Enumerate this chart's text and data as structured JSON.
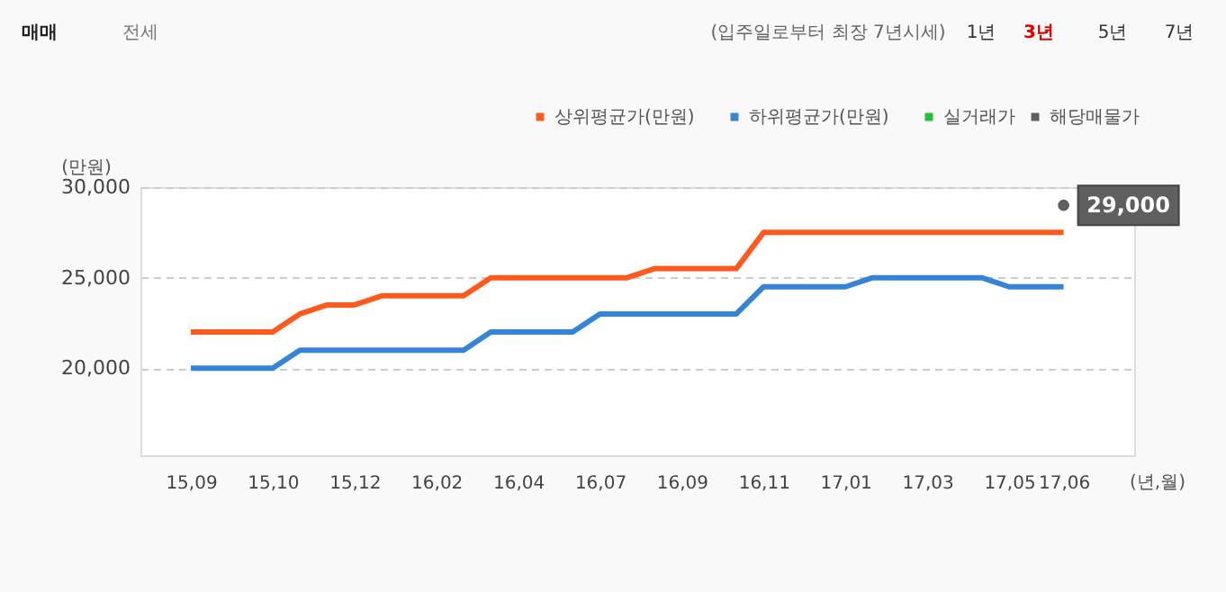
{
  "chart_data": {
    "type": "line",
    "categories": [
      "15,09",
      null,
      null,
      "15,10",
      null,
      null,
      "15,12",
      null,
      null,
      "16,02",
      null,
      null,
      "16,04",
      null,
      null,
      "16,07",
      null,
      null,
      "16,09",
      null,
      null,
      "16,11",
      null,
      null,
      "17,01",
      null,
      null,
      "17,03",
      null,
      null,
      "17,05",
      null,
      "17,06"
    ],
    "series": [
      {
        "name": "상위평균가(만원)",
        "color": "#ff5a1e",
        "values": [
          22000,
          22000,
          22000,
          22000,
          23000,
          23500,
          23500,
          24000,
          24000,
          24000,
          24000,
          25000,
          25000,
          25000,
          25000,
          25000,
          25000,
          25500,
          25500,
          25500,
          25500,
          27500,
          27500,
          27500,
          27500,
          27500,
          27500,
          27500,
          27500,
          27500,
          27500,
          27500,
          27500
        ]
      },
      {
        "name": "하위평균가(만원)",
        "color": "#3584d6",
        "values": [
          20000,
          20000,
          20000,
          20000,
          21000,
          21000,
          21000,
          21000,
          21000,
          21000,
          21000,
          22000,
          22000,
          22000,
          22000,
          23000,
          23000,
          23000,
          23000,
          23000,
          23000,
          24500,
          24500,
          24500,
          24500,
          25000,
          25000,
          25000,
          25000,
          25000,
          24500,
          24500,
          24500
        ]
      },
      {
        "name": "실거래가",
        "color": "#1dc23a",
        "type": "scatter",
        "values": [
          null,
          null,
          null,
          null,
          null,
          null,
          null,
          null,
          null,
          null,
          null,
          null,
          null,
          null,
          null,
          null,
          null,
          null,
          null,
          null,
          null,
          null,
          null,
          null,
          null,
          null,
          null,
          null,
          null,
          null,
          null,
          null,
          null
        ]
      },
      {
        "name": "해당매물가",
        "color": "#5f5f5f",
        "type": "scatter",
        "marker": "circle",
        "values": [
          null,
          null,
          null,
          null,
          null,
          null,
          null,
          null,
          null,
          null,
          null,
          null,
          null,
          null,
          null,
          null,
          null,
          null,
          null,
          null,
          null,
          null,
          null,
          null,
          null,
          null,
          null,
          null,
          null,
          null,
          null,
          null,
          29000
        ],
        "value_labels": [
          null,
          null,
          null,
          null,
          null,
          null,
          null,
          null,
          null,
          null,
          null,
          null,
          null,
          null,
          null,
          null,
          null,
          null,
          null,
          null,
          null,
          null,
          null,
          null,
          null,
          null,
          null,
          null,
          null,
          null,
          null,
          null,
          "29,000"
        ]
      }
    ],
    "ylabel": "(만원)",
    "xlabel": "(년,월)",
    "ylim": [
      15200,
      30000
    ],
    "yticks": [
      {
        "value": 20000,
        "label": "20,000"
      },
      {
        "value": 25000,
        "label": "25,000"
      },
      {
        "value": 30000,
        "label": "30,000"
      }
    ],
    "grid": "y",
    "legend": "top right",
    "line_style": "solid",
    "marker": "none",
    "annotations": [
      "매매",
      "전세",
      "(입주일로부터 최장 7년시세)",
      "1년",
      "3년",
      "5년",
      "7년"
    ]
  }
}
